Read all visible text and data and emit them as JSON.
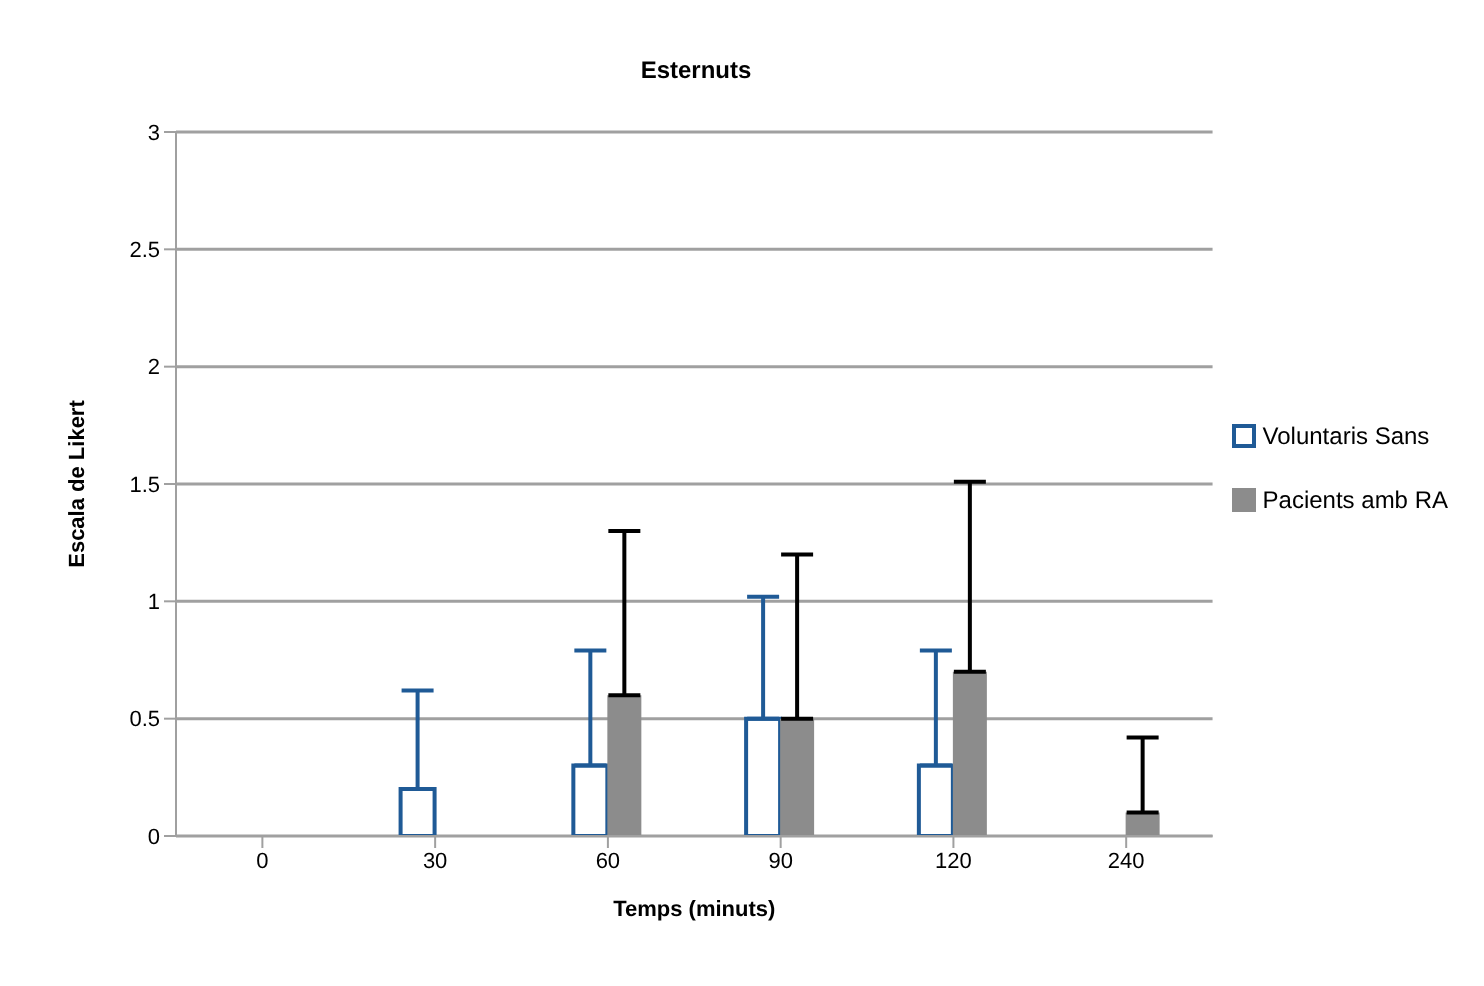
{
  "chart_data": {
    "type": "bar",
    "title": "Esternuts",
    "xlabel": "Temps (minuts)",
    "ylabel": "Escala de Likert",
    "categories": [
      "0",
      "30",
      "60",
      "90",
      "120",
      "240"
    ],
    "series": [
      {
        "name": "Voluntaris Sans",
        "color": "#1f5a96",
        "values": [
          0,
          0.2,
          0.3,
          0.5,
          0.3,
          0
        ],
        "errors": [
          [
            0,
            0
          ],
          [
            0.2,
            0.62
          ],
          [
            0.3,
            0.79
          ],
          [
            0.5,
            1.02
          ],
          [
            0.3,
            0.79
          ],
          [
            0,
            0
          ]
        ]
      },
      {
        "name": "Pacients amb RA",
        "color": "#8c8c8c",
        "values": [
          0,
          0,
          0.6,
          0.5,
          0.7,
          0.1
        ],
        "errors": [
          [
            0,
            0
          ],
          [
            0,
            0
          ],
          [
            0.6,
            1.3
          ],
          [
            0.5,
            1.2
          ],
          [
            0.7,
            1.51
          ],
          [
            0.1,
            0.42
          ]
        ]
      }
    ],
    "ylim": [
      0,
      3
    ],
    "yticks": [
      0,
      0.5,
      1,
      1.5,
      2,
      2.5,
      3
    ],
    "grid": "y",
    "legend": "right"
  }
}
